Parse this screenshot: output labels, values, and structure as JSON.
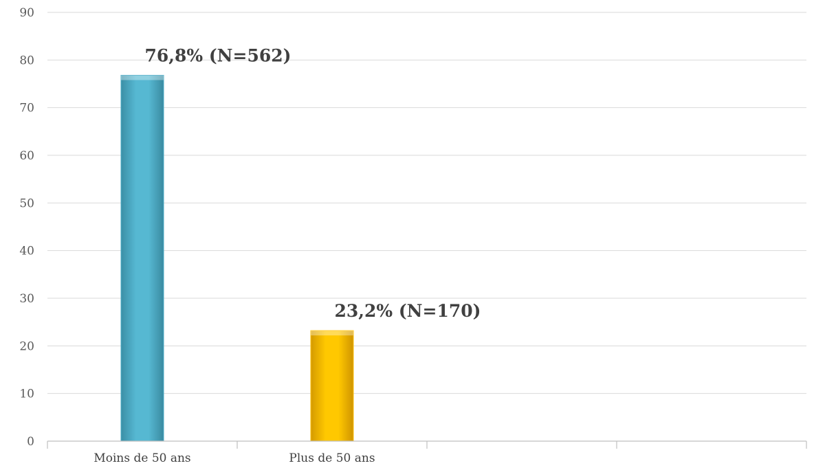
{
  "chart_data": {
    "type": "bar",
    "categories": [
      "Moins de 50 ans",
      "Plus de 50 ans",
      "",
      ""
    ],
    "values": [
      76.8,
      23.2,
      null,
      null
    ],
    "data_labels": [
      "76,8% (N=562)",
      "23,2% (N=170)",
      "",
      ""
    ],
    "title": "",
    "xlabel": "",
    "ylabel": "",
    "ylim": [
      0,
      90
    ],
    "yticks": [
      0,
      10,
      20,
      30,
      40,
      50,
      60,
      70,
      80,
      90
    ],
    "grid": true,
    "legend": "none",
    "colors": [
      "#4bacc6",
      "#ffc000"
    ]
  }
}
